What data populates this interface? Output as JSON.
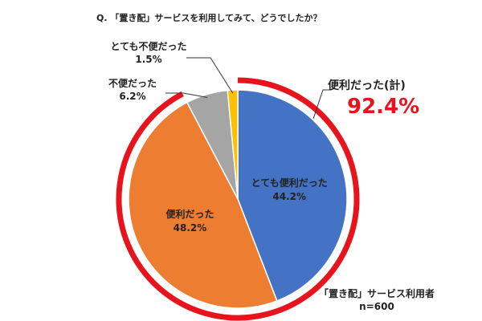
{
  "question": "Q. 「置き配」サービスを利用してみて、どうでしたか？",
  "group": {
    "label": "便利だった(計)",
    "value": "92.4%",
    "color": "#e8141d"
  },
  "respondents": {
    "label": "「置き配」サービス利用者",
    "n": "n=600"
  },
  "chart_data": {
    "type": "pie",
    "title": "Q. 「置き配」サービスを利用してみて、どうでしたか？",
    "slices": [
      {
        "label": "とても便利だった",
        "value": 44.2,
        "value_label": "44.2%",
        "color": "#4472c4"
      },
      {
        "label": "便利だった",
        "value": 48.2,
        "value_label": "48.2%",
        "color": "#ed7d31"
      },
      {
        "label": "不便だった",
        "value": 6.2,
        "value_label": "6.2%",
        "color": "#a5a5a5"
      },
      {
        "label": "とても不便だった",
        "value": 1.5,
        "value_label": "1.5%",
        "color": "#ffc000"
      }
    ],
    "start": "12 o'clock",
    "direction": "clockwise",
    "highlight_group": {
      "slices": [
        "とても便利だった",
        "便利だった"
      ],
      "label": "便利だった(計)",
      "value_label": "92.4%"
    }
  }
}
